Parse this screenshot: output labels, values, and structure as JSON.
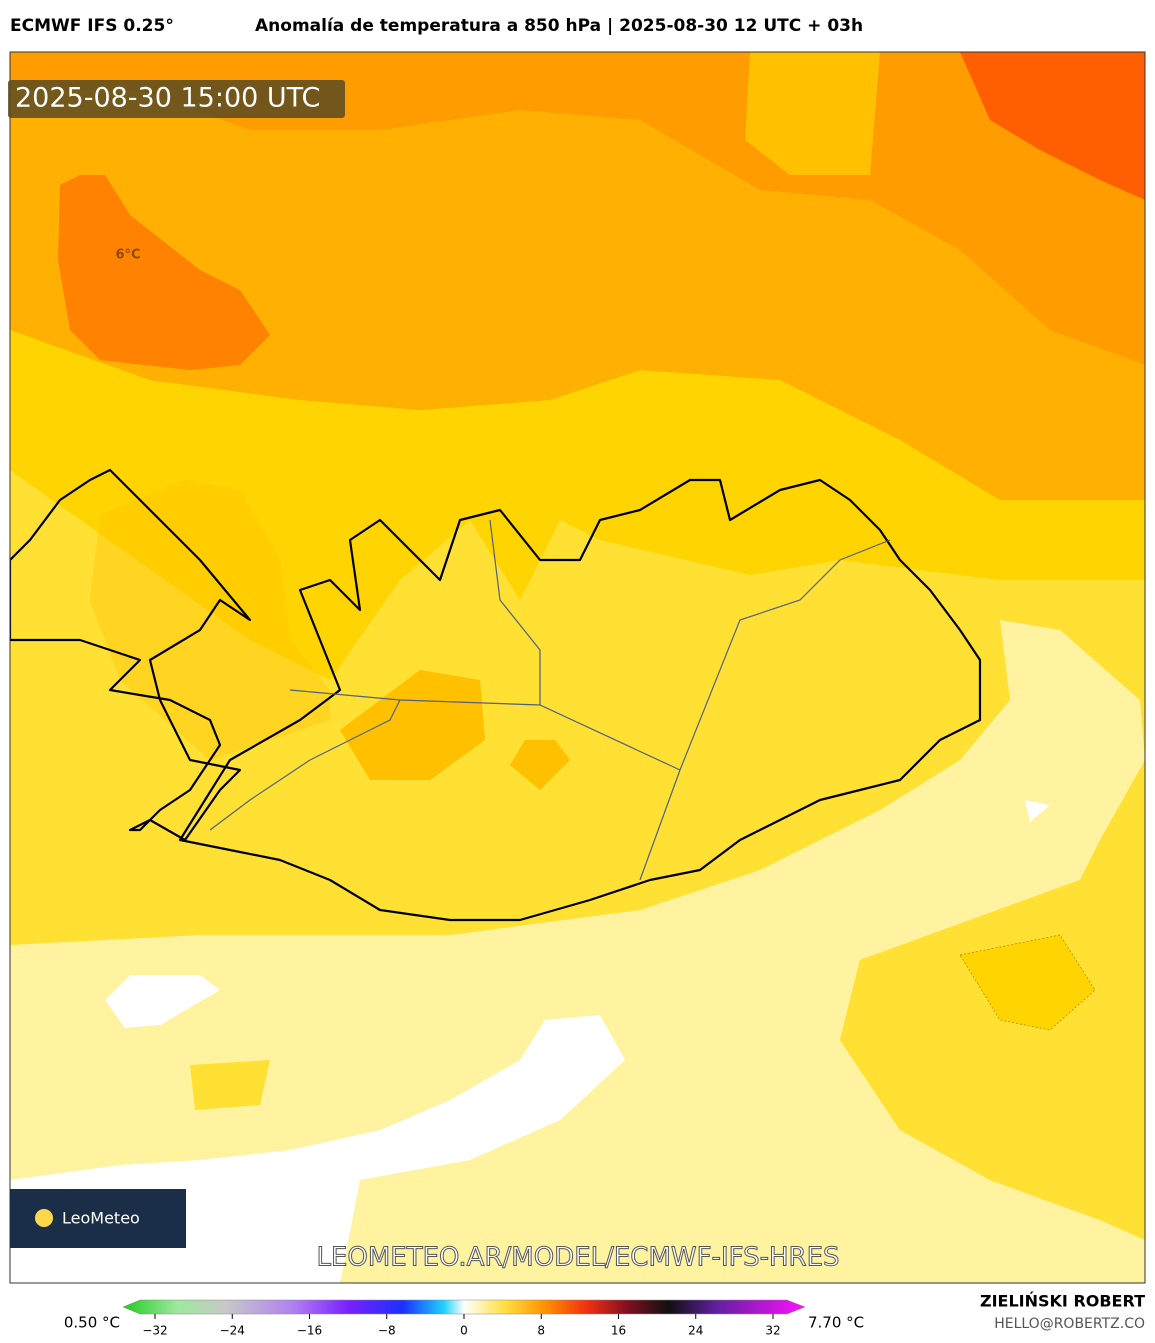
{
  "header": {
    "model": "ECMWF IFS 0.25°",
    "title": "Anomalía de temperatura a 850 hPa | 2025-08-30 12 UTC + 03h"
  },
  "map": {
    "valid_time": "2025-08-30 15:00 UTC",
    "contour_label": "6°C",
    "watermark": "LEOMETEO.AR/MODEL/ECMWF-IFS-HRES",
    "logo": "LeoMeteo"
  },
  "colorbar": {
    "min_label": "0.50 °C",
    "max_label": "7.70 °C",
    "ticks": [
      {
        "value": -32,
        "label": "−32"
      },
      {
        "value": -24,
        "label": "−24"
      },
      {
        "value": -16,
        "label": "−16"
      },
      {
        "value": -8,
        "label": "−8"
      },
      0,
      8,
      16,
      24,
      32
    ]
  },
  "footer": {
    "author": "ZIELIŃSKI ROBERT",
    "email": "HELLO@ROBERTZ.CO"
  }
}
